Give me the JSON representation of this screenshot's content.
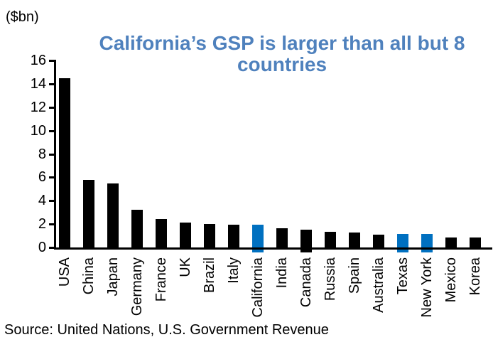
{
  "header": {
    "units_label": "($bn)",
    "title": "California’s GSP is larger than all but 8 countries",
    "title_lines": [
      "California’s GSP is larger than all but 8",
      "countries"
    ],
    "title_color": "#4F81BD"
  },
  "chart_data": {
    "type": "bar",
    "title": "California’s GSP is larger than all but 8 countries",
    "units_label": "($bn)",
    "categories": [
      "USA",
      "China",
      "Japan",
      "Germany",
      "France",
      "UK",
      "Brazil",
      "Italy",
      "California",
      "India",
      "Canada",
      "Russia",
      "Spain",
      "Australia",
      "Texas",
      "New York",
      "Mexico",
      "Korea"
    ],
    "values": [
      14.5,
      5.8,
      5.45,
      3.25,
      2.45,
      2.15,
      2.0,
      1.95,
      1.95,
      1.65,
      1.55,
      1.35,
      1.25,
      1.1,
      1.15,
      1.15,
      0.85,
      0.85
    ],
    "bar_colors": {
      "default": "#000000",
      "highlight": "#0070C0"
    },
    "highlighted_categories": [
      "California",
      "Texas",
      "New York"
    ],
    "bars_dipping_below_axis": [
      "California",
      "Canada",
      "Texas",
      "New York"
    ],
    "xlabel": "",
    "ylabel": "($bn)",
    "ylim": [
      0,
      16
    ],
    "yticks": [
      0,
      2,
      4,
      6,
      8,
      10,
      12,
      14,
      16
    ],
    "grid": false,
    "legend_position": "none",
    "x_tick_label_rotation_degrees": 90
  },
  "footer": {
    "source": "Source: United Nations, U.S. Government Revenue"
  }
}
